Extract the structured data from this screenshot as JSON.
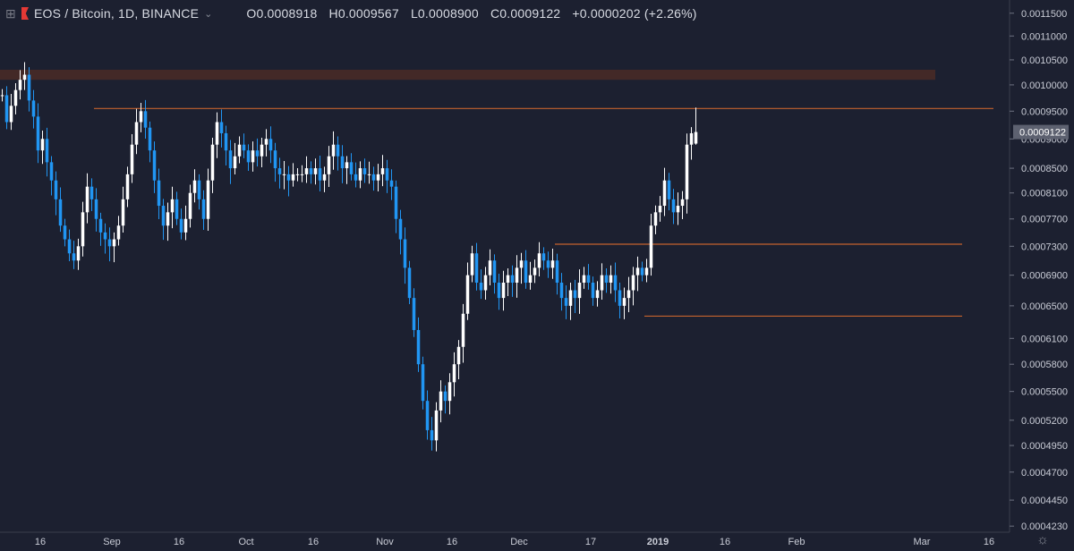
{
  "header": {
    "symbol_title": "EOS / Bitcoin, 1D, BINANCE",
    "open": "O0.0008918",
    "high": "H0.0009567",
    "low": "L0.0008900",
    "close": "C0.0009122",
    "change": "+0.0000202 (+2.26%)",
    "icons": [
      "crosshair-icon",
      "exchange-flag-icon",
      "chevron-down-icon"
    ]
  },
  "price_axis": {
    "ticks": [
      "0.0011500",
      "0.0011000",
      "0.0010500",
      "0.0010000",
      "0.0009500",
      "0.0009000",
      "0.0008500",
      "0.0008100",
      "0.0007700",
      "0.0007300",
      "0.0006900",
      "0.0006500",
      "0.0006100",
      "0.0005800",
      "0.0005500",
      "0.0005200",
      "0.0004950",
      "0.0004700",
      "0.0004450",
      "0.0004230"
    ],
    "last_price_label": "0.0009122",
    "scale": "log"
  },
  "time_axis": {
    "ticks": [
      {
        "label": "16",
        "bold": false
      },
      {
        "label": "Sep",
        "bold": false
      },
      {
        "label": "16",
        "bold": false
      },
      {
        "label": "Oct",
        "bold": false
      },
      {
        "label": "16",
        "bold": false
      },
      {
        "label": "Nov",
        "bold": false
      },
      {
        "label": "16",
        "bold": false
      },
      {
        "label": "Dec",
        "bold": false
      },
      {
        "label": "17",
        "bold": false
      },
      {
        "label": "2019",
        "bold": true
      },
      {
        "label": "16",
        "bold": false
      },
      {
        "label": "Feb",
        "bold": false
      },
      {
        "label": "Mar",
        "bold": false
      },
      {
        "label": "16",
        "bold": false
      }
    ]
  },
  "colors": {
    "background": "#1c2030",
    "up_candle": "#ffffff",
    "down_candle": "#2196f3",
    "level_line": "#c4622d",
    "resistance_zone": "#4a2b26",
    "axis_text": "#c9ccd6",
    "last_price_box": "#5d6170"
  },
  "chart_data": {
    "type": "candlestick",
    "timeframe": "1D",
    "symbol": "EOS / Bitcoin",
    "exchange": "BINANCE",
    "last_candle": {
      "open": 0.0008918,
      "high": 0.0009567,
      "low": 0.00089,
      "close": 0.0009122
    },
    "horizontal_levels": [
      0.000955,
      0.000733,
      0.000637
    ],
    "resistance_zone": [
      0.00101,
      0.00103
    ],
    "x_range": [
      "2018-08-07",
      "2019-03-20"
    ],
    "y_range": [
      0.000418,
      0.00118
    ],
    "series": [
      {
        "price": [
          0.00098,
          0.00093,
          0.00096,
          0.00099,
          0.00101,
          0.00102,
          0.00097,
          0.00094,
          0.00088,
          0.0009,
          0.00086,
          0.00083,
          0.0008,
          0.00076,
          0.00074,
          0.00072,
          0.00071,
          0.00073,
          0.00078,
          0.00082,
          0.0008,
          0.00077,
          0.00075,
          0.00074,
          0.00073,
          0.00074,
          0.00076,
          0.0008,
          0.00084,
          0.00089,
          0.00093,
          0.00095,
          0.00092,
          0.00088,
          0.00083,
          0.00079,
          0.00076,
          0.00078,
          0.0008,
          0.00077,
          0.00075,
          0.00077,
          0.00081,
          0.00083,
          0.0008,
          0.00077,
          0.00083,
          0.00089,
          0.00093,
          0.00091,
          0.00088,
          0.00085,
          0.00087,
          0.00089,
          0.00088,
          0.00086,
          0.00088,
          0.00087,
          0.00089,
          0.0009,
          0.00088,
          0.00085,
          0.00084,
          0.00084,
          0.00083,
          0.00084,
          0.00084,
          0.00084,
          0.00085,
          0.00084,
          0.00085,
          0.00083,
          0.00084,
          0.00087,
          0.00089,
          0.00087,
          0.00085,
          0.00086,
          0.00084,
          0.00083,
          0.00085,
          0.00084,
          0.00084,
          0.00083,
          0.00084,
          0.00085,
          0.00083,
          0.00082,
          0.00077,
          0.00074,
          0.0007,
          0.00066,
          0.00062,
          0.00058,
          0.00054,
          0.00051,
          0.0005,
          0.00053,
          0.00055,
          0.00054,
          0.00056,
          0.00058,
          0.0006,
          0.00064,
          0.00069,
          0.00072,
          0.00068,
          0.00067,
          0.00069,
          0.00071,
          0.00068,
          0.00066,
          0.00068,
          0.00069,
          0.00068,
          0.0007,
          0.00071,
          0.00068,
          0.00069,
          0.0007,
          0.00072,
          0.00071,
          0.0007,
          0.00071,
          0.00068,
          0.00066,
          0.00065,
          0.00067,
          0.00066,
          0.00068,
          0.00069,
          0.00068,
          0.00066,
          0.00067,
          0.00069,
          0.00068,
          0.00069,
          0.00067,
          0.00065,
          0.00066,
          0.00067,
          0.00069,
          0.0007,
          0.00069,
          0.0007,
          0.00076,
          0.00078,
          0.00079,
          0.00083,
          0.0008,
          0.00078,
          0.00079,
          0.0008,
          0.00089,
          0.00091
        ]
      }
    ]
  }
}
